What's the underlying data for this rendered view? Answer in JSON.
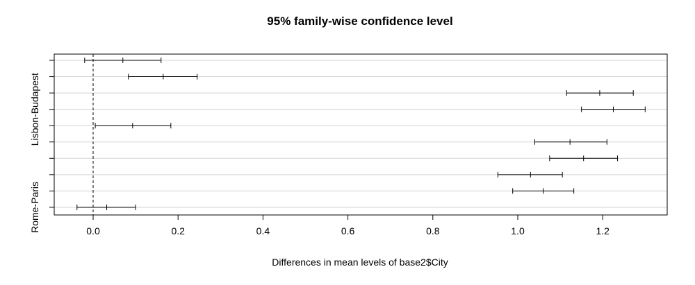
{
  "chart_data": {
    "type": "interval",
    "title": "95% family-wise confidence level",
    "xlabel": "Differences in mean levels of base2$City",
    "ylabel": "",
    "xlim": [
      -0.1,
      1.35
    ],
    "x_ticks": [
      0.0,
      0.2,
      0.4,
      0.6,
      0.8,
      1.0,
      1.2
    ],
    "x_tick_labels": [
      "0.0",
      "0.2",
      "0.4",
      "0.6",
      "0.8",
      "1.0",
      "1.2"
    ],
    "reference_line": 0,
    "grid": "horizontal",
    "y_labels_visible": [
      "Lisbon-Budapest",
      "Rome-Paris"
    ],
    "comparisons": [
      {
        "label": "",
        "lwr": -0.02,
        "mean": 0.07,
        "upr": 0.16
      },
      {
        "label": "",
        "lwr": 0.083,
        "mean": 0.165,
        "upr": 0.245
      },
      {
        "label": "",
        "lwr": 1.115,
        "mean": 1.193,
        "upr": 1.272
      },
      {
        "label": "Lisbon-Budapest",
        "lwr": 1.15,
        "mean": 1.225,
        "upr": 1.3
      },
      {
        "label": "",
        "lwr": 0.005,
        "mean": 0.093,
        "upr": 0.183
      },
      {
        "label": "",
        "lwr": 1.04,
        "mean": 1.123,
        "upr": 1.21
      },
      {
        "label": "",
        "lwr": 1.075,
        "mean": 1.155,
        "upr": 1.235
      },
      {
        "label": "",
        "lwr": 0.953,
        "mean": 1.03,
        "upr": 1.105
      },
      {
        "label": "",
        "lwr": 0.988,
        "mean": 1.06,
        "upr": 1.132
      },
      {
        "label": "Rome-Paris",
        "lwr": -0.038,
        "mean": 0.032,
        "upr": 0.1
      }
    ]
  }
}
